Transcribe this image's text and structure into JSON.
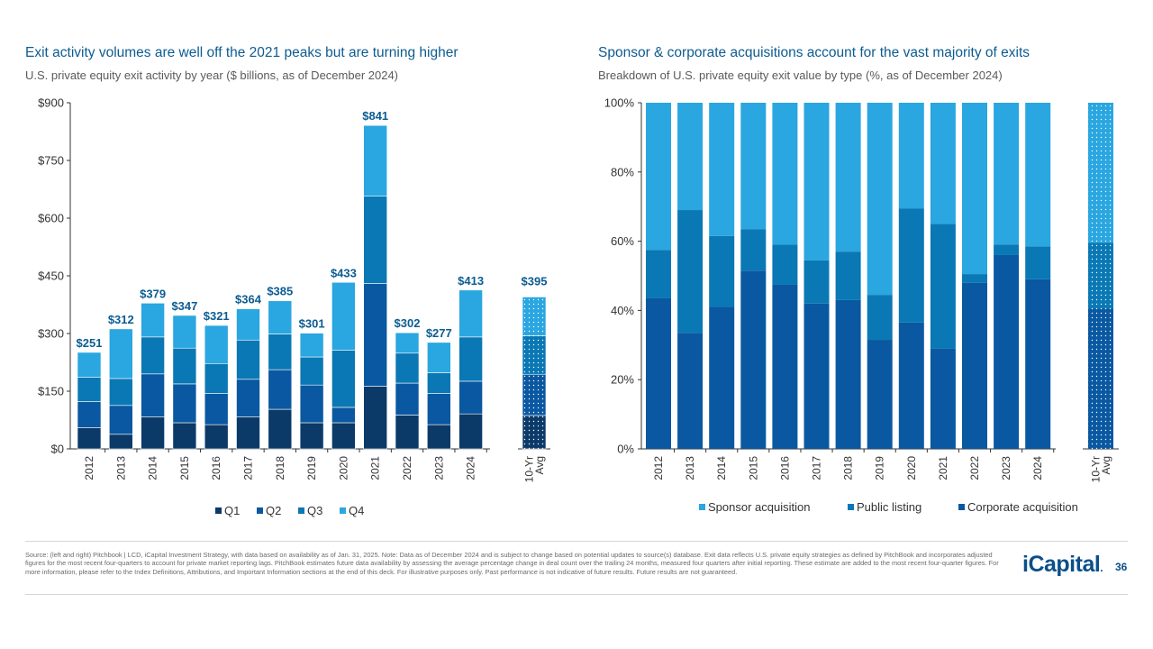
{
  "left": {
    "title": "Exit activity volumes are well off the 2021 peaks but are turning higher",
    "subtitle": "U.S. private equity exit activity by year ($ billions, as of December 2024)"
  },
  "right": {
    "title": "Sponsor & corporate acquisitions account for the vast majority of exits",
    "subtitle": "Breakdown of U.S. private equity exit value by type (%, as of December 2024)"
  },
  "footer": {
    "source": "Source: (left and right) Pitchbook | LCD, iCapital Investment Strategy, with data based on availability as of Jan. 31, 2025. Note: Data as of December 2024 and is subject to change based on potential updates to source(s) database. Exit data reflects U.S. private equity strategies as defined by PitchBook and incorporates adjusted figures for the most recent four-quarters to account for private market reporting lags. PitchBook estimates future data availability by assessing the average percentage change in deal count over the trailing 24 months, measured four quarters after initial reporting. These estimate are added to the most recent four-quarter figures. For more information, please refer to the Index Definitions, Attributions, and Important Information sections at the end of this deck. For illustrative purposes only. Past performance is not indicative of future results. Future results are not guaranteed.",
    "logo": "iCapital",
    "logo_mark": ".",
    "page": "36"
  },
  "colors": {
    "q1": "#0c3a68",
    "q2": "#0a58a1",
    "q3": "#0a78b4",
    "q4": "#2aa6e0",
    "corporate": "#0a58a1",
    "public": "#0a78b4",
    "sponsor": "#2aa6e0",
    "axis": "#333333",
    "label": "#0b5c92"
  },
  "chart_data": [
    {
      "type": "bar",
      "stacked": true,
      "title": "Exit activity volumes are well off the 2021 peaks but are turning higher",
      "ylabel": "$ billions",
      "ylim": [
        0,
        900
      ],
      "yticks": [
        0,
        150,
        300,
        450,
        600,
        750,
        900
      ],
      "ytick_labels": [
        "$0",
        "$150",
        "$300",
        "$450",
        "$600",
        "$750",
        "$900"
      ],
      "categories": [
        "2012",
        "2013",
        "2014",
        "2015",
        "2016",
        "2017",
        "2018",
        "2019",
        "2020",
        "2021",
        "2022",
        "2023",
        "2024"
      ],
      "series": [
        {
          "name": "Q1",
          "values": [
            55,
            38,
            83,
            68,
            63,
            83,
            103,
            68,
            68,
            163,
            88,
            63,
            91
          ]
        },
        {
          "name": "Q2",
          "values": [
            68,
            75,
            112,
            101,
            81,
            98,
            103,
            98,
            40,
            267,
            83,
            81,
            85
          ]
        },
        {
          "name": "Q3",
          "values": [
            63,
            70,
            96,
            93,
            78,
            102,
            93,
            73,
            149,
            227,
            78,
            54,
            115
          ]
        },
        {
          "name": "Q4",
          "values": [
            65,
            129,
            88,
            85,
            99,
            81,
            86,
            62,
            176,
            184,
            53,
            79,
            122
          ]
        }
      ],
      "totals": [
        251,
        312,
        379,
        347,
        321,
        364,
        385,
        301,
        433,
        841,
        302,
        277,
        413
      ],
      "total_labels": [
        "$251",
        "$312",
        "$379",
        "$347",
        "$321",
        "$364",
        "$385",
        "$301",
        "$433",
        "$841",
        "$302",
        "$277",
        "$413"
      ],
      "average": {
        "category_lines": [
          "10-Yr",
          "Avg"
        ],
        "values": [
          87,
          107,
          100,
          101
        ],
        "total": 395,
        "total_label": "$395"
      },
      "legend": [
        "Q1",
        "Q2",
        "Q3",
        "Q4"
      ],
      "legend_position": "bottom"
    },
    {
      "type": "bar",
      "stacked": true,
      "percent": true,
      "title": "Sponsor & corporate acquisitions account for the vast majority of exits",
      "ylim": [
        0,
        100
      ],
      "yticks": [
        0,
        20,
        40,
        60,
        80,
        100
      ],
      "ytick_labels": [
        "0%",
        "20%",
        "40%",
        "60%",
        "80%",
        "100%"
      ],
      "categories": [
        "2012",
        "2013",
        "2014",
        "2015",
        "2016",
        "2017",
        "2018",
        "2019",
        "2020",
        "2021",
        "2022",
        "2023",
        "2024"
      ],
      "series": [
        {
          "name": "Corporate acquisition",
          "values": [
            43.5,
            33.5,
            41,
            51.5,
            47.5,
            42,
            43,
            31.5,
            36.5,
            29,
            48,
            56,
            49
          ]
        },
        {
          "name": "Public listing",
          "values": [
            14,
            35.5,
            20.5,
            12,
            11.5,
            12.5,
            14,
            13,
            33,
            36,
            2.5,
            3,
            9.5
          ]
        },
        {
          "name": "Sponsor acquisition",
          "values": [
            42.5,
            31,
            38.5,
            36.5,
            41,
            45.5,
            43,
            55.5,
            30.5,
            35,
            49.5,
            41,
            41.5
          ]
        }
      ],
      "average": {
        "category_lines": [
          "10-Yr",
          "Avg"
        ],
        "values": [
          40.5,
          19,
          40.5
        ]
      },
      "legend": [
        "Sponsor acquisition",
        "Public listing",
        "Corporate acquisition"
      ],
      "legend_position": "bottom"
    }
  ]
}
